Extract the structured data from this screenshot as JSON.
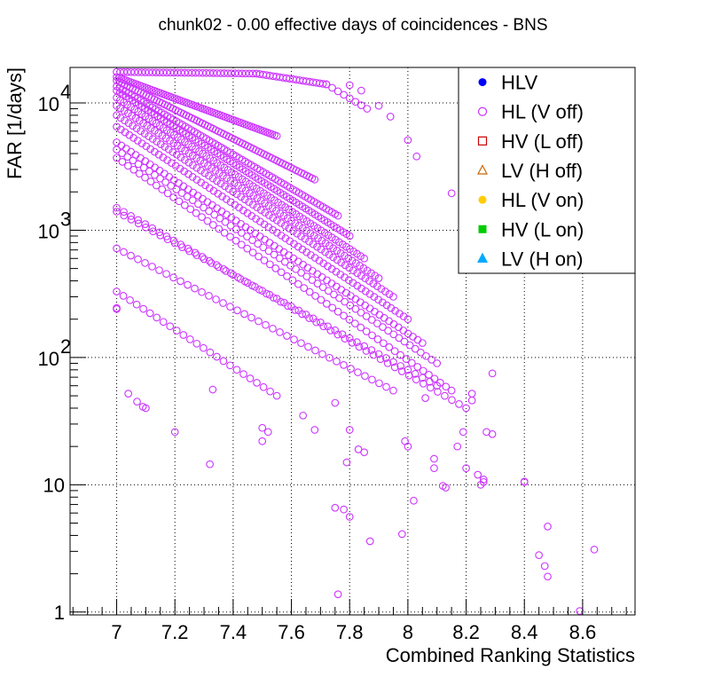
{
  "chart_data": {
    "type": "scatter",
    "title": "chunk02 - 0.00 effective days of coincidences - BNS",
    "xlabel": "Combined Ranking Statistics",
    "ylabel": "FAR [1/days]",
    "xlim": [
      6.84,
      8.78
    ],
    "ylim": [
      0.95,
      19000
    ],
    "y_scale": "log",
    "grid": true,
    "x_ticks": [
      {
        "value": 7.0,
        "label": "7"
      },
      {
        "value": 7.2,
        "label": "7.2"
      },
      {
        "value": 7.4,
        "label": "7.4"
      },
      {
        "value": 7.6,
        "label": "7.6"
      },
      {
        "value": 7.8,
        "label": "7.8"
      },
      {
        "value": 8.0,
        "label": "8"
      },
      {
        "value": 8.2,
        "label": "8.2"
      },
      {
        "value": 8.4,
        "label": "8.4"
      },
      {
        "value": 8.6,
        "label": "8.6"
      }
    ],
    "y_ticks": [
      {
        "value": 1,
        "base": "1",
        "exp": ""
      },
      {
        "value": 10,
        "base": "10",
        "exp": ""
      },
      {
        "value": 100,
        "base": "10",
        "exp": "2"
      },
      {
        "value": 1000,
        "base": "10",
        "exp": "3"
      },
      {
        "value": 10000,
        "base": "10",
        "exp": "4"
      }
    ],
    "legend": {
      "position": "top-right",
      "entries": [
        {
          "name": "HLV",
          "marker": "circle-filled",
          "color": "#0000ff"
        },
        {
          "name": "HL (V off)",
          "marker": "circle-open",
          "color": "#cc33ff"
        },
        {
          "name": "HV (L off)",
          "marker": "square-open",
          "color": "#cc0000"
        },
        {
          "name": "LV (H off)",
          "marker": "triangle-open",
          "color": "#cc6600"
        },
        {
          "name": "HL (V on)",
          "marker": "circle-filled",
          "color": "#ffcc00"
        },
        {
          "name": "HV (L on)",
          "marker": "square-filled",
          "color": "#00cc00"
        },
        {
          "name": "LV (H on)",
          "marker": "triangle-filled",
          "color": "#00aaff"
        }
      ]
    },
    "series": [
      {
        "name": "HL (V off)",
        "marker": "circle-open",
        "color": "#cc33ff",
        "bands": [
          {
            "x_start": 7.0,
            "x_end": 7.48,
            "y_start": 17500,
            "y_end": 17000,
            "n": 40
          },
          {
            "x_start": 7.48,
            "x_end": 7.72,
            "y_start": 17000,
            "y_end": 14000,
            "n": 22
          },
          {
            "x_start": 7.72,
            "x_end": 7.86,
            "y_start": 14000,
            "y_end": 9000,
            "n": 8
          },
          {
            "x_start": 7.0,
            "x_end": 7.55,
            "y_start": 16000,
            "y_end": 5500,
            "n": 70
          },
          {
            "x_start": 7.0,
            "x_end": 7.68,
            "y_start": 15000,
            "y_end": 2500,
            "n": 75
          },
          {
            "x_start": 7.0,
            "x_end": 7.76,
            "y_start": 13500,
            "y_end": 1300,
            "n": 75
          },
          {
            "x_start": 7.0,
            "x_end": 7.8,
            "y_start": 12500,
            "y_end": 900,
            "n": 75
          },
          {
            "x_start": 7.0,
            "x_end": 7.85,
            "y_start": 11000,
            "y_end": 600,
            "n": 70
          },
          {
            "x_start": 7.0,
            "x_end": 7.9,
            "y_start": 9500,
            "y_end": 420,
            "n": 70
          },
          {
            "x_start": 7.0,
            "x_end": 7.95,
            "y_start": 8000,
            "y_end": 300,
            "n": 70
          },
          {
            "x_start": 7.0,
            "x_end": 8.0,
            "y_start": 6500,
            "y_end": 200,
            "n": 70
          },
          {
            "x_start": 7.0,
            "x_end": 8.05,
            "y_start": 4900,
            "y_end": 130,
            "n": 65
          },
          {
            "x_start": 7.0,
            "x_end": 8.1,
            "y_start": 4300,
            "y_end": 90,
            "n": 60
          },
          {
            "x_start": 7.0,
            "x_end": 8.15,
            "y_start": 3700,
            "y_end": 55,
            "n": 60
          },
          {
            "x_start": 7.0,
            "x_end": 8.2,
            "y_start": 1500,
            "y_end": 40,
            "n": 50
          },
          {
            "x_start": 7.0,
            "x_end": 8.1,
            "y_start": 1400,
            "y_end": 60,
            "n": 45
          },
          {
            "x_start": 7.0,
            "x_end": 7.95,
            "y_start": 720,
            "y_end": 55,
            "n": 40
          },
          {
            "x_start": 7.0,
            "x_end": 7.55,
            "y_start": 330,
            "y_end": 50,
            "n": 25
          }
        ],
        "points": [
          [
            7.0,
            240
          ],
          [
            7.0,
            245
          ],
          [
            7.04,
            52
          ],
          [
            7.07,
            45
          ],
          [
            7.09,
            41
          ],
          [
            7.1,
            40
          ],
          [
            7.2,
            26
          ],
          [
            7.32,
            14.5
          ],
          [
            7.33,
            56
          ],
          [
            7.5,
            28
          ],
          [
            7.5,
            22
          ],
          [
            7.52,
            26
          ],
          [
            7.64,
            35
          ],
          [
            7.68,
            27
          ],
          [
            7.75,
            44
          ],
          [
            7.79,
            15
          ],
          [
            7.8,
            27
          ],
          [
            7.83,
            19
          ],
          [
            7.85,
            18
          ],
          [
            7.75,
            6.6
          ],
          [
            7.78,
            6.4
          ],
          [
            7.8,
            5.6
          ],
          [
            7.76,
            1.38
          ],
          [
            7.87,
            3.6
          ],
          [
            7.98,
            4.1
          ],
          [
            8.02,
            7.5
          ],
          [
            7.99,
            22
          ],
          [
            8.0,
            20
          ],
          [
            8.06,
            48
          ],
          [
            8.09,
            16
          ],
          [
            8.09,
            13.5
          ],
          [
            8.12,
            9.8
          ],
          [
            8.13,
            9.5
          ],
          [
            8.17,
            20
          ],
          [
            8.2,
            13.5
          ],
          [
            8.22,
            52
          ],
          [
            8.19,
            26
          ],
          [
            8.22,
            46
          ],
          [
            8.24,
            12
          ],
          [
            8.25,
            10
          ],
          [
            8.26,
            10.5
          ],
          [
            8.26,
            11
          ],
          [
            8.27,
            26
          ],
          [
            8.29,
            25
          ],
          [
            8.29,
            75
          ],
          [
            8.4,
            10.6
          ],
          [
            8.4,
            10.5
          ],
          [
            8.45,
            2.8
          ],
          [
            8.47,
            2.3
          ],
          [
            8.48,
            1.9
          ],
          [
            8.48,
            4.7
          ],
          [
            8.59,
            1.02
          ],
          [
            8.64,
            3.1
          ],
          [
            8.15,
            1950
          ],
          [
            8.03,
            3800
          ],
          [
            8.0,
            5100
          ],
          [
            7.94,
            7800
          ],
          [
            7.9,
            9500
          ],
          [
            7.84,
            12500
          ],
          [
            7.8,
            13800
          ]
        ]
      },
      {
        "name": "HLV",
        "marker": "circle-filled",
        "color": "#0000ff",
        "points": []
      },
      {
        "name": "HV (L off)",
        "marker": "square-open",
        "color": "#cc0000",
        "points": []
      },
      {
        "name": "LV (H off)",
        "marker": "triangle-open",
        "color": "#cc6600",
        "points": []
      },
      {
        "name": "HL (V on)",
        "marker": "circle-filled",
        "color": "#ffcc00",
        "points": []
      },
      {
        "name": "HV (L on)",
        "marker": "square-filled",
        "color": "#00cc00",
        "points": []
      },
      {
        "name": "LV (H on)",
        "marker": "triangle-filled",
        "color": "#00aaff",
        "points": []
      }
    ]
  }
}
